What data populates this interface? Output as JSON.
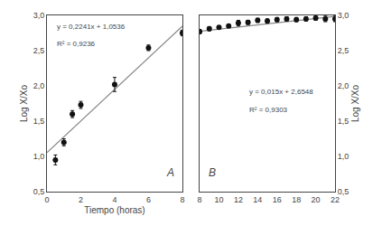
{
  "chart_data": [
    {
      "type": "scatter",
      "xlabel": "Tiempo (horas)",
      "ylabel": "Log X/Xo",
      "xlim": [
        0,
        8
      ],
      "ylim": [
        0.5,
        3.0
      ],
      "xticks": [
        0,
        2,
        4,
        6,
        8
      ],
      "yticks": [
        {
          "value": 0.5,
          "label": "0,5"
        },
        {
          "value": 1.0,
          "label": "1,0"
        },
        {
          "value": 1.5,
          "label": "1,5"
        },
        {
          "value": 2.0,
          "label": "2,0"
        },
        {
          "value": 2.5,
          "label": "2,5"
        },
        {
          "value": 3.0,
          "label": "3,0"
        }
      ],
      "grid": false,
      "series": [
        {
          "type": "line",
          "color": "#888888",
          "x": [
            0,
            8
          ],
          "values": [
            1.0536,
            2.8464
          ]
        },
        {
          "type": "scatter",
          "color": "#111111",
          "marker": "circle",
          "x": [
            0.5,
            1.0,
            1.5,
            2.0,
            4.0,
            6.0,
            8.0
          ],
          "values": [
            0.95,
            1.2,
            1.6,
            1.73,
            2.02,
            2.54,
            2.75
          ],
          "yerr": [
            0.07,
            0.05,
            0.05,
            0.05,
            0.1,
            0.04,
            0.04
          ]
        }
      ],
      "annotations": [
        {
          "text": "y = 0,2241x + 1,0536",
          "color": "#444444"
        },
        {
          "text": "R² = 0,9236",
          "color": "#444444"
        },
        {
          "text": "A"
        }
      ]
    },
    {
      "type": "scatter",
      "ylabel": "Log X/Xo",
      "xlim": [
        8,
        22
      ],
      "ylim": [
        0.5,
        3.0
      ],
      "xticks": [
        8,
        10,
        12,
        14,
        16,
        18,
        20,
        22
      ],
      "yticks": [
        {
          "value": 0.5,
          "label": "0,5"
        },
        {
          "value": 1.0,
          "label": "1,0"
        },
        {
          "value": 1.5,
          "label": "1,5"
        },
        {
          "value": 2.0,
          "label": "2,0"
        },
        {
          "value": 2.5,
          "label": "2,5"
        },
        {
          "value": 3.0,
          "label": "3,0"
        }
      ],
      "grid": false,
      "series": [
        {
          "type": "line",
          "color": "#888888",
          "x": [
            8,
            22
          ],
          "values": [
            2.7748,
            2.9848
          ]
        },
        {
          "type": "scatter",
          "color": "#111111",
          "marker": "circle",
          "x": [
            8,
            9,
            10,
            11,
            12,
            13,
            14,
            15,
            16,
            17,
            18,
            19,
            20,
            21,
            22
          ],
          "values": [
            2.77,
            2.81,
            2.83,
            2.85,
            2.89,
            2.9,
            2.93,
            2.92,
            2.94,
            2.95,
            2.94,
            2.95,
            2.96,
            2.95,
            2.95
          ],
          "yerr": [
            0.03,
            0.03,
            0.02,
            0.02,
            0.04,
            0.03,
            0.03,
            0.03,
            0.03,
            0.03,
            0.03,
            0.03,
            0.03,
            0.04,
            0.04
          ]
        }
      ],
      "annotations": [
        {
          "text": "y = 0,015x + 2,6548",
          "color": "#444444"
        },
        {
          "text": "R² = 0,9303",
          "color": "#444444"
        },
        {
          "text": "B"
        }
      ]
    }
  ]
}
